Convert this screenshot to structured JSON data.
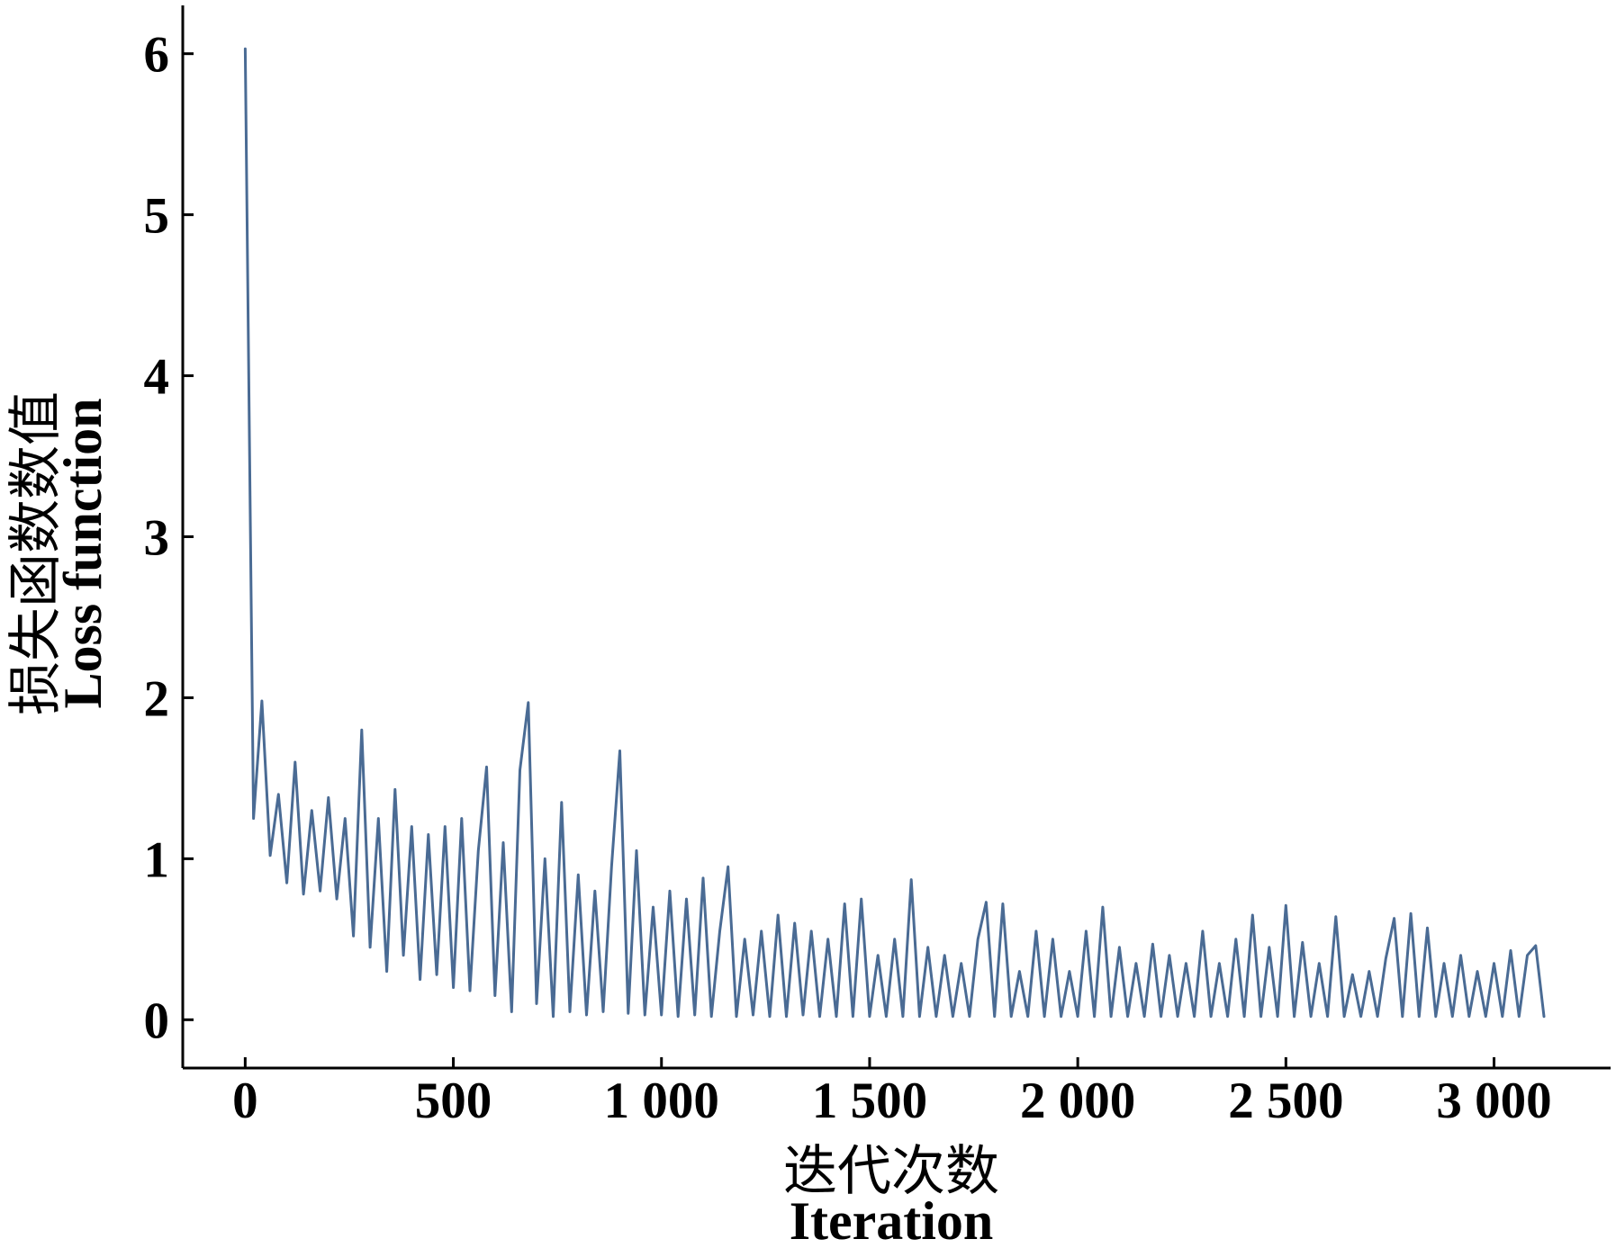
{
  "chart_data": {
    "type": "line",
    "xlabel": "迭代次数",
    "xlabel_en": "Iteration",
    "ylabel": "损失函数数值",
    "ylabel_en": "Loss function",
    "xlim": [
      -150,
      3280
    ],
    "ylim": [
      -0.3,
      6.3
    ],
    "grid": false,
    "legend": "none",
    "x_ticks": [
      {
        "value": 0,
        "label": "0"
      },
      {
        "value": 500,
        "label": "500"
      },
      {
        "value": 1000,
        "label": "1 000"
      },
      {
        "value": 1500,
        "label": "1 500"
      },
      {
        "value": 2000,
        "label": "2 000"
      },
      {
        "value": 2500,
        "label": "2 500"
      },
      {
        "value": 3000,
        "label": "3 000"
      }
    ],
    "y_ticks": [
      {
        "value": 0,
        "label": "0"
      },
      {
        "value": 1,
        "label": "1"
      },
      {
        "value": 2,
        "label": "2"
      },
      {
        "value": 3,
        "label": "3"
      },
      {
        "value": 4,
        "label": "4"
      },
      {
        "value": 5,
        "label": "5"
      },
      {
        "value": 6,
        "label": "6"
      }
    ],
    "x": [
      0,
      20,
      40,
      60,
      80,
      100,
      120,
      140,
      160,
      180,
      200,
      220,
      240,
      260,
      280,
      300,
      320,
      340,
      360,
      380,
      400,
      420,
      440,
      460,
      480,
      500,
      520,
      540,
      560,
      580,
      600,
      620,
      640,
      660,
      680,
      700,
      720,
      740,
      760,
      780,
      800,
      820,
      840,
      860,
      880,
      900,
      920,
      940,
      960,
      980,
      1000,
      1020,
      1040,
      1060,
      1080,
      1100,
      1120,
      1140,
      1160,
      1180,
      1200,
      1220,
      1240,
      1260,
      1280,
      1300,
      1320,
      1340,
      1360,
      1380,
      1400,
      1420,
      1440,
      1460,
      1480,
      1500,
      1520,
      1540,
      1560,
      1580,
      1600,
      1620,
      1640,
      1660,
      1680,
      1700,
      1720,
      1740,
      1760,
      1780,
      1800,
      1820,
      1840,
      1860,
      1880,
      1900,
      1920,
      1940,
      1960,
      1980,
      2000,
      2020,
      2040,
      2060,
      2080,
      2100,
      2120,
      2140,
      2160,
      2180,
      2200,
      2220,
      2240,
      2260,
      2280,
      2300,
      2320,
      2340,
      2360,
      2380,
      2400,
      2420,
      2440,
      2460,
      2480,
      2500,
      2520,
      2540,
      2560,
      2580,
      2600,
      2620,
      2640,
      2660,
      2680,
      2700,
      2720,
      2740,
      2760,
      2780,
      2800,
      2820,
      2840,
      2860,
      2880,
      2900,
      2920,
      2940,
      2960,
      2980,
      3000,
      3020,
      3040,
      3060,
      3080,
      3100,
      3120
    ],
    "series": [
      {
        "values": [
          6.03,
          1.25,
          1.98,
          1.02,
          1.4,
          0.85,
          1.6,
          0.78,
          1.3,
          0.8,
          1.38,
          0.75,
          1.25,
          0.52,
          1.8,
          0.45,
          1.25,
          0.3,
          1.43,
          0.4,
          1.2,
          0.25,
          1.15,
          0.28,
          1.2,
          0.2,
          1.25,
          0.18,
          1.05,
          1.57,
          0.15,
          1.1,
          0.05,
          1.55,
          1.97,
          0.1,
          1.0,
          0.02,
          1.35,
          0.05,
          0.9,
          0.03,
          0.8,
          0.05,
          0.95,
          1.67,
          0.04,
          1.05,
          0.03,
          0.7,
          0.03,
          0.8,
          0.02,
          0.75,
          0.03,
          0.88,
          0.02,
          0.55,
          0.95,
          0.02,
          0.5,
          0.03,
          0.55,
          0.02,
          0.65,
          0.02,
          0.6,
          0.03,
          0.55,
          0.02,
          0.5,
          0.02,
          0.72,
          0.02,
          0.75,
          0.02,
          0.4,
          0.02,
          0.5,
          0.02,
          0.87,
          0.02,
          0.45,
          0.02,
          0.4,
          0.02,
          0.35,
          0.02,
          0.5,
          0.73,
          0.02,
          0.72,
          0.02,
          0.3,
          0.02,
          0.55,
          0.02,
          0.5,
          0.02,
          0.3,
          0.02,
          0.55,
          0.02,
          0.7,
          0.02,
          0.45,
          0.02,
          0.35,
          0.02,
          0.47,
          0.02,
          0.4,
          0.02,
          0.35,
          0.02,
          0.55,
          0.02,
          0.35,
          0.02,
          0.5,
          0.02,
          0.65,
          0.02,
          0.45,
          0.02,
          0.71,
          0.02,
          0.48,
          0.02,
          0.35,
          0.02,
          0.64,
          0.02,
          0.28,
          0.02,
          0.3,
          0.02,
          0.38,
          0.63,
          0.02,
          0.66,
          0.02,
          0.57,
          0.02,
          0.35,
          0.02,
          0.4,
          0.02,
          0.3,
          0.02,
          0.35,
          0.02,
          0.43,
          0.02,
          0.4,
          0.46,
          0.02
        ]
      }
    ]
  },
  "colors": {
    "series": "#4a6b94",
    "axis": "#000000"
  }
}
